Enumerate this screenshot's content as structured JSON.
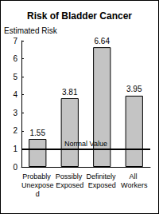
{
  "chart_data": {
    "type": "bar",
    "title": "Risk of Bladder Cancer",
    "y_label": "Estimated Risk",
    "categories": [
      "Probably Unexposed",
      "Possibly Exposed",
      "Definitely Exposed",
      "All Workers"
    ],
    "values": [
      1.55,
      3.81,
      6.64,
      3.95
    ],
    "color": "#c4c4c4",
    "ylim": [
      0,
      7
    ],
    "yticks": [
      0,
      1,
      2,
      3,
      4,
      5,
      6,
      7
    ],
    "grid": false,
    "data_labels": true,
    "annotations": [
      {
        "text": "Normal Value",
        "y": 1
      }
    ]
  }
}
